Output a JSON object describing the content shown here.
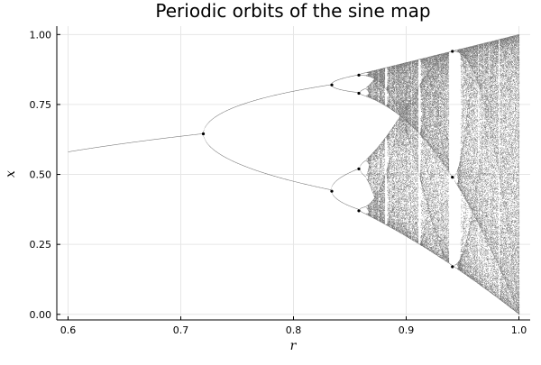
{
  "chart_data": {
    "type": "scatter",
    "title": "Periodic orbits of the sine map",
    "xlabel": "r",
    "ylabel": "x",
    "xlim": [
      0.59,
      1.01
    ],
    "ylim": [
      -0.02,
      1.03
    ],
    "x_ticks": [
      {
        "value": 0.6,
        "label": "0.6"
      },
      {
        "value": 0.7,
        "label": "0.7"
      },
      {
        "value": 0.8,
        "label": "0.8"
      },
      {
        "value": 0.9,
        "label": "0.9"
      },
      {
        "value": 1.0,
        "label": "1.0"
      }
    ],
    "y_ticks": [
      {
        "value": 0.0,
        "label": "0.00"
      },
      {
        "value": 0.25,
        "label": "0.25"
      },
      {
        "value": 0.5,
        "label": "0.50"
      },
      {
        "value": 0.75,
        "label": "0.75"
      },
      {
        "value": 1.0,
        "label": "1.00"
      }
    ],
    "grid": true,
    "legend": "none",
    "point_color": "#000000",
    "map": "x_next = r * sin(pi * x)",
    "r_range": [
      0.6,
      1.0
    ],
    "bifurcation_points": [
      {
        "r": 0.72,
        "x": 0.645
      },
      {
        "r": 0.834,
        "x": 0.82
      },
      {
        "r": 0.834,
        "x": 0.44
      },
      {
        "r": 0.858,
        "x": 0.855
      },
      {
        "r": 0.858,
        "x": 0.79
      },
      {
        "r": 0.858,
        "x": 0.52
      },
      {
        "r": 0.858,
        "x": 0.37
      },
      {
        "r": 0.941,
        "x": 0.94
      },
      {
        "r": 0.941,
        "x": 0.49
      },
      {
        "r": 0.941,
        "x": 0.17
      }
    ]
  }
}
